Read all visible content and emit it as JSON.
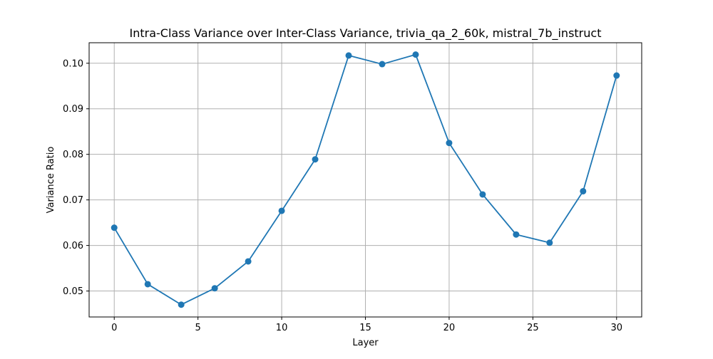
{
  "chart_data": {
    "type": "line",
    "title": "Intra-Class Variance over Inter-Class Variance, trivia_qa_2_60k, mistral_7b_instruct",
    "xlabel": "Layer",
    "ylabel": "Variance Ratio",
    "xlim": [
      -1.5,
      31.5
    ],
    "ylim": [
      0.0443,
      0.1045
    ],
    "x_ticks": [
      0,
      5,
      10,
      15,
      20,
      25,
      30
    ],
    "x_tick_labels": [
      "0",
      "5",
      "10",
      "15",
      "20",
      "25",
      "30"
    ],
    "y_ticks": [
      0.05,
      0.06,
      0.07,
      0.08,
      0.09,
      0.1
    ],
    "y_tick_labels": [
      "0.05",
      "0.06",
      "0.07",
      "0.08",
      "0.09",
      "0.10"
    ],
    "grid": true,
    "legend": "none",
    "series": [
      {
        "color": "#1f77b4",
        "marker": "circle",
        "x": [
          0,
          2,
          4,
          6,
          8,
          10,
          12,
          14,
          16,
          18,
          20,
          22,
          24,
          26,
          28,
          30
        ],
        "y": [
          0.0639,
          0.0515,
          0.047,
          0.0506,
          0.0565,
          0.0676,
          0.0789,
          0.1017,
          0.0998,
          0.1019,
          0.0825,
          0.0712,
          0.0624,
          0.0606,
          0.0719,
          0.0973
        ]
      }
    ]
  }
}
